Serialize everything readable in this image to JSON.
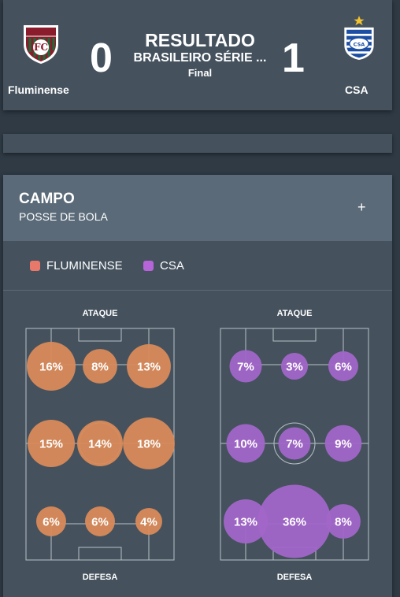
{
  "match": {
    "home": {
      "name": "Fluminense",
      "score": "0"
    },
    "away": {
      "name": "CSA",
      "score": "1"
    },
    "title": "RESULTADO",
    "competition": "BRASILEIRO SÉRIE ...",
    "status": "Final"
  },
  "campo": {
    "title": "CAMPO",
    "subtitle": "POSSE DE BOLA",
    "expand_icon": "+",
    "legend": [
      {
        "label": "FLUMINENSE",
        "color": "#e8796a"
      },
      {
        "label": "CSA",
        "color": "#b565d8"
      }
    ],
    "pitches": [
      {
        "team": "Fluminense",
        "color": "#d98a58",
        "top_label": "ATAQUE",
        "bottom_label": "DEFESA",
        "zones": [
          {
            "zone": "attack-left",
            "label": "16%",
            "value": 16
          },
          {
            "zone": "attack-center",
            "label": "8%",
            "value": 8
          },
          {
            "zone": "attack-right",
            "label": "13%",
            "value": 13
          },
          {
            "zone": "mid-left",
            "label": "15%",
            "value": 15
          },
          {
            "zone": "mid-center",
            "label": "14%",
            "value": 14
          },
          {
            "zone": "mid-right",
            "label": "18%",
            "value": 18
          },
          {
            "zone": "defense-left",
            "label": "6%",
            "value": 6
          },
          {
            "zone": "defense-center",
            "label": "6%",
            "value": 6
          },
          {
            "zone": "defense-right",
            "label": "4%",
            "value": 4
          }
        ]
      },
      {
        "team": "CSA",
        "color": "#a266c8",
        "top_label": "ATAQUE",
        "bottom_label": "DEFESA",
        "zones": [
          {
            "zone": "attack-left",
            "label": "7%",
            "value": 7
          },
          {
            "zone": "attack-center",
            "label": "3%",
            "value": 3
          },
          {
            "zone": "attack-right",
            "label": "6%",
            "value": 6
          },
          {
            "zone": "mid-left",
            "label": "10%",
            "value": 10
          },
          {
            "zone": "mid-center",
            "label": "7%",
            "value": 7
          },
          {
            "zone": "mid-right",
            "label": "9%",
            "value": 9
          },
          {
            "zone": "defense-left",
            "label": "13%",
            "value": 13
          },
          {
            "zone": "defense-center",
            "label": "36%",
            "value": 36
          },
          {
            "zone": "defense-right",
            "label": "8%",
            "value": 8
          }
        ]
      }
    ]
  }
}
